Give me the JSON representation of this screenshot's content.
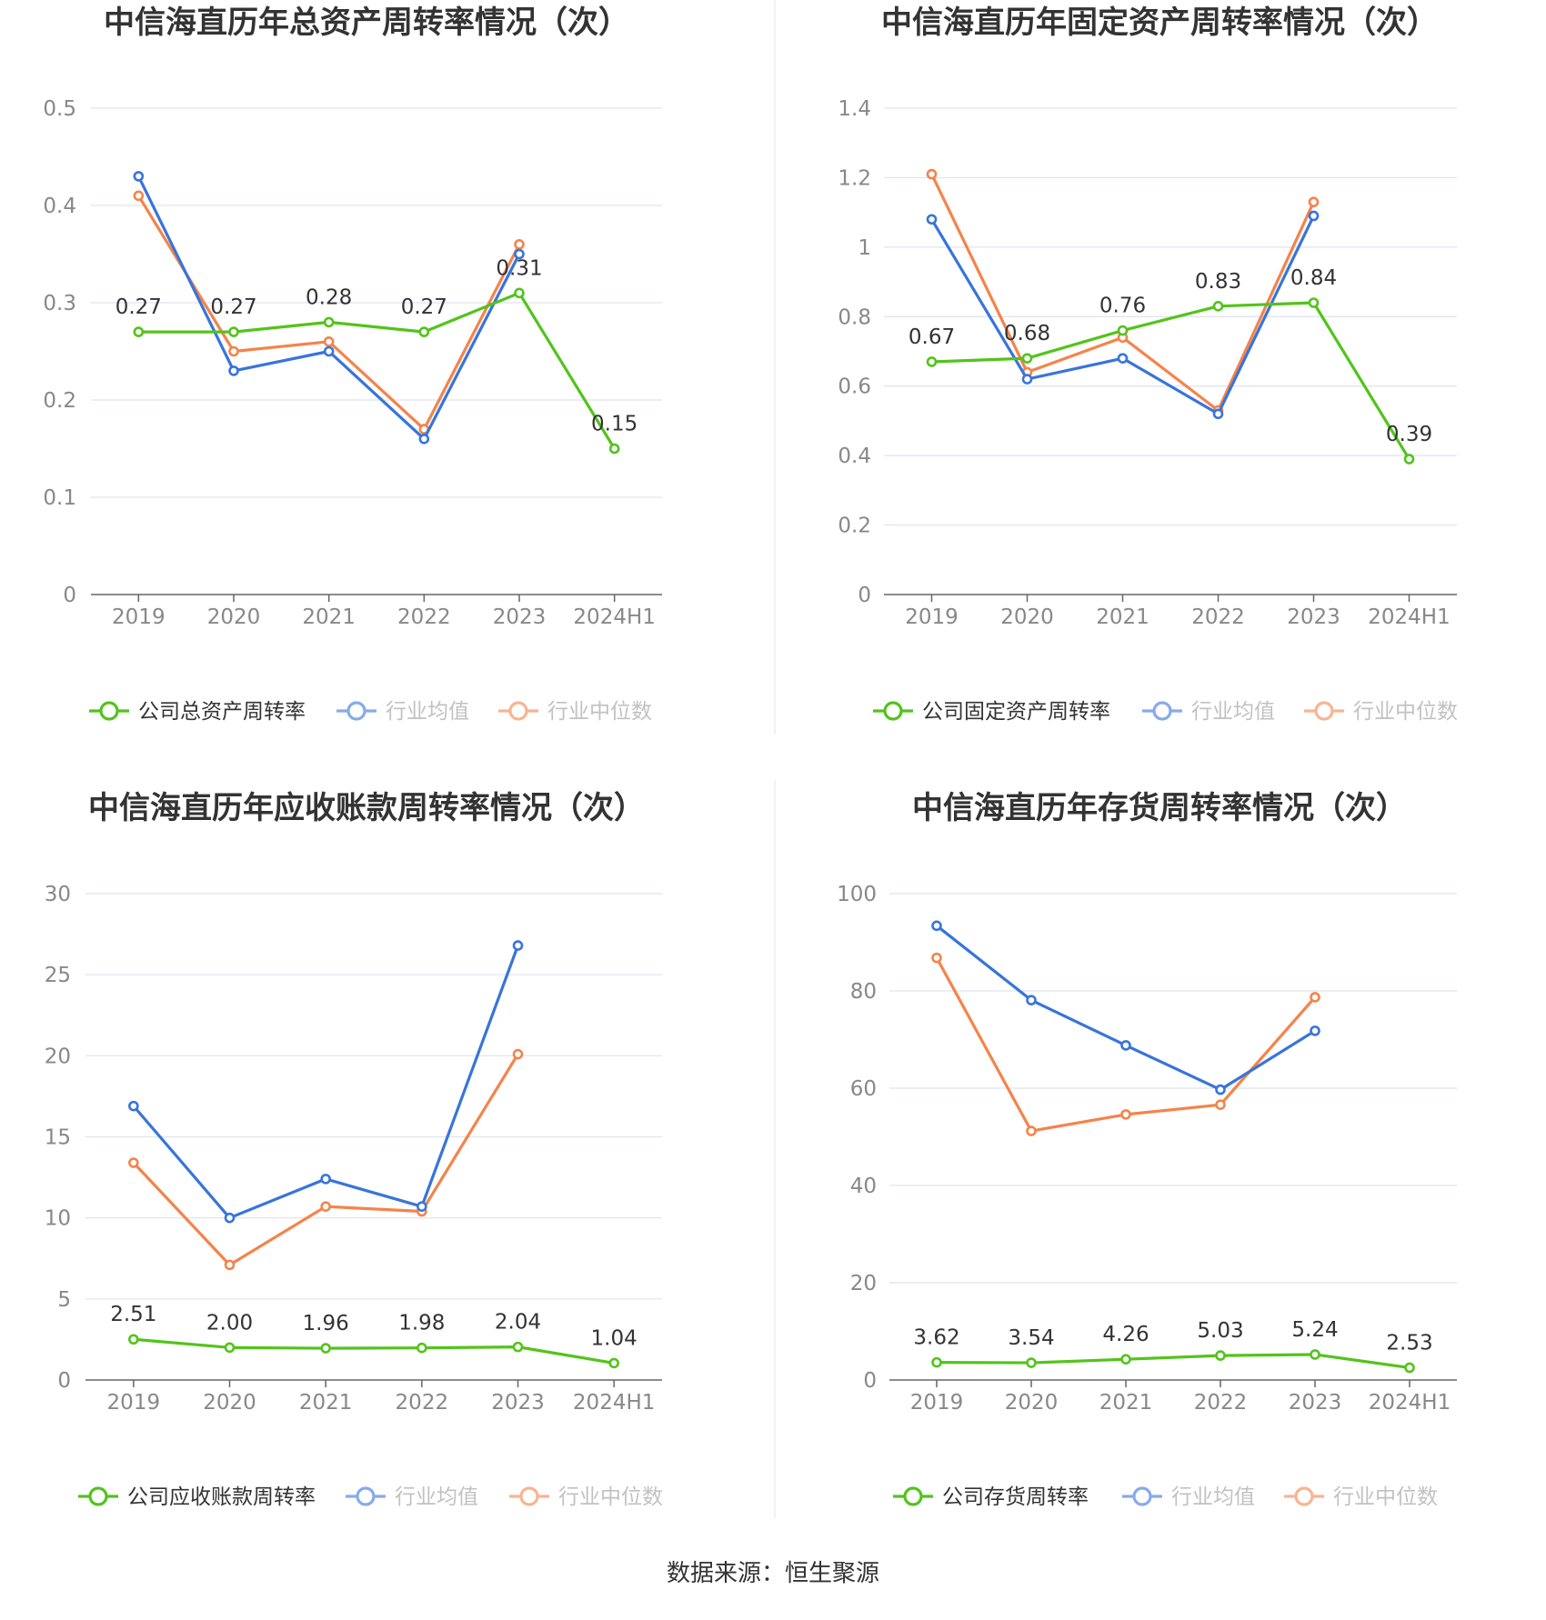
{
  "source_text": "数据来源：恒生聚源",
  "colors": {
    "company": "#52c41a",
    "average": "#3874db",
    "median": "#f5834a",
    "grid": "#dfe3ee",
    "axis": "#666666",
    "tick": "#888888",
    "title": "#333333",
    "divider": "#eeeeee"
  },
  "legend_icons": [
    "circle-line-icon",
    "circle-line-icon",
    "circle-line-icon"
  ],
  "chart_data": [
    {
      "type": "line",
      "title": "中信海直历年总资产周转率情况（次）",
      "categories": [
        "2019",
        "2020",
        "2021",
        "2022",
        "2023",
        "2024H1"
      ],
      "yticks": [
        "0",
        "0.1",
        "0.2",
        "0.3",
        "0.4",
        "0.5"
      ],
      "ylim": [
        0,
        0.5
      ],
      "grid": true,
      "legend_position": "bottom",
      "series": [
        {
          "name": "公司总资产周转率",
          "key": "company",
          "values": [
            0.27,
            0.27,
            0.28,
            0.27,
            0.31,
            0.15
          ],
          "labels": [
            "0.27",
            "0.27",
            "0.28",
            "0.27",
            "0.31",
            "0.15"
          ]
        },
        {
          "name": "行业均值",
          "key": "average",
          "values": [
            0.43,
            0.23,
            0.25,
            0.16,
            0.35,
            null
          ]
        },
        {
          "name": "行业中位数",
          "key": "median",
          "values": [
            0.41,
            0.25,
            0.26,
            0.17,
            0.36,
            null
          ]
        }
      ]
    },
    {
      "type": "line",
      "title": "中信海直历年固定资产周转率情况（次）",
      "categories": [
        "2019",
        "2020",
        "2021",
        "2022",
        "2023",
        "2024H1"
      ],
      "yticks": [
        "0",
        "0.2",
        "0.4",
        "0.6",
        "0.8",
        "1",
        "1.2",
        "1.4"
      ],
      "ylim": [
        0,
        1.4
      ],
      "grid": true,
      "legend_position": "bottom",
      "series": [
        {
          "name": "公司固定资产周转率",
          "key": "company",
          "values": [
            0.67,
            0.68,
            0.76,
            0.83,
            0.84,
            0.39
          ],
          "labels": [
            "0.67",
            "0.68",
            "0.76",
            "0.83",
            "0.84",
            "0.39"
          ]
        },
        {
          "name": "行业均值",
          "key": "average",
          "values": [
            1.08,
            0.62,
            0.68,
            0.52,
            1.09,
            null
          ]
        },
        {
          "name": "行业中位数",
          "key": "median",
          "values": [
            1.21,
            0.64,
            0.74,
            0.53,
            1.13,
            null
          ]
        }
      ]
    },
    {
      "type": "line",
      "title": "中信海直历年应收账款周转率情况（次）",
      "categories": [
        "2019",
        "2020",
        "2021",
        "2022",
        "2023",
        "2024H1"
      ],
      "yticks": [
        "0",
        "5",
        "10",
        "15",
        "20",
        "25",
        "30"
      ],
      "ylim": [
        0,
        30
      ],
      "grid": true,
      "legend_position": "bottom",
      "series": [
        {
          "name": "公司应收账款周转率",
          "key": "company",
          "values": [
            2.51,
            2.0,
            1.96,
            1.98,
            2.04,
            1.04
          ],
          "labels": [
            "2.51",
            "2.00",
            "1.96",
            "1.98",
            "2.04",
            "1.04"
          ]
        },
        {
          "name": "行业均值",
          "key": "average",
          "values": [
            16.9,
            10.0,
            12.4,
            10.7,
            26.8,
            null
          ]
        },
        {
          "name": "行业中位数",
          "key": "median",
          "values": [
            13.4,
            7.1,
            10.7,
            10.4,
            20.1,
            null
          ]
        }
      ]
    },
    {
      "type": "line",
      "title": "中信海直历年存货周转率情况（次）",
      "categories": [
        "2019",
        "2020",
        "2021",
        "2022",
        "2023",
        "2024H1"
      ],
      "yticks": [
        "0",
        "20",
        "40",
        "60",
        "80",
        "100"
      ],
      "ylim": [
        0,
        100
      ],
      "grid": true,
      "legend_position": "bottom",
      "series": [
        {
          "name": "公司存货周转率",
          "key": "company",
          "values": [
            3.62,
            3.54,
            4.26,
            5.03,
            5.24,
            2.53
          ],
          "labels": [
            "3.62",
            "3.54",
            "4.26",
            "5.03",
            "5.24",
            "2.53"
          ]
        },
        {
          "name": "行业均值",
          "key": "average",
          "values": [
            93.4,
            78.1,
            68.8,
            59.7,
            71.8,
            null
          ]
        },
        {
          "name": "行业中位数",
          "key": "median",
          "values": [
            86.8,
            51.2,
            54.6,
            56.6,
            78.7,
            null
          ]
        }
      ]
    }
  ]
}
